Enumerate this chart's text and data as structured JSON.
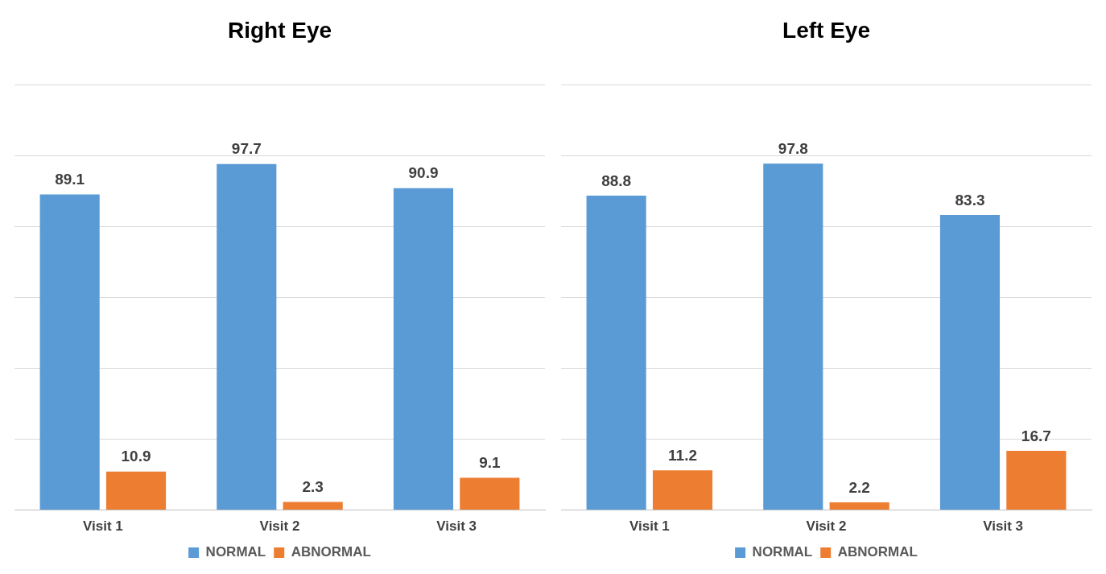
{
  "chart_data": [
    {
      "type": "bar",
      "title": "Right Eye",
      "categories": [
        "Visit 1",
        "Visit 2",
        "Visit 3"
      ],
      "series": [
        {
          "name": "NORMAL",
          "color": "#5b9bd5",
          "values": [
            89.1,
            97.7,
            90.9
          ]
        },
        {
          "name": "ABNORMAL",
          "color": "#ed7d31",
          "values": [
            10.9,
            2.3,
            9.1
          ]
        }
      ],
      "ylim": [
        0,
        120
      ],
      "yticks": [
        {
          "value": 0,
          "label": null
        },
        {
          "value": 20,
          "label": null
        },
        {
          "value": 40,
          "label": null
        },
        {
          "value": 60,
          "label": null
        },
        {
          "value": 80,
          "label": null
        },
        {
          "value": 100,
          "label": null
        },
        {
          "value": 120,
          "label": null
        }
      ],
      "grid": "y",
      "tick_labels": "x",
      "legend": "bottom",
      "data_labels": true
    },
    {
      "type": "bar",
      "title": "Left Eye",
      "categories": [
        "Visit 1",
        "Visit 2",
        "Visit 3"
      ],
      "series": [
        {
          "name": "NORMAL",
          "color": "#5b9bd5",
          "values": [
            88.8,
            97.8,
            83.3
          ]
        },
        {
          "name": "ABNORMAL",
          "color": "#ed7d31",
          "values": [
            11.2,
            2.2,
            16.7
          ]
        }
      ],
      "ylim": [
        0,
        120
      ],
      "yticks": [
        {
          "value": 0,
          "label": null
        },
        {
          "value": 20,
          "label": null
        },
        {
          "value": 40,
          "label": null
        },
        {
          "value": 60,
          "label": null
        },
        {
          "value": 80,
          "label": null
        },
        {
          "value": 100,
          "label": null
        },
        {
          "value": 120,
          "label": null
        }
      ],
      "grid": "y",
      "tick_labels": "x",
      "legend": "bottom",
      "data_labels": true
    }
  ]
}
